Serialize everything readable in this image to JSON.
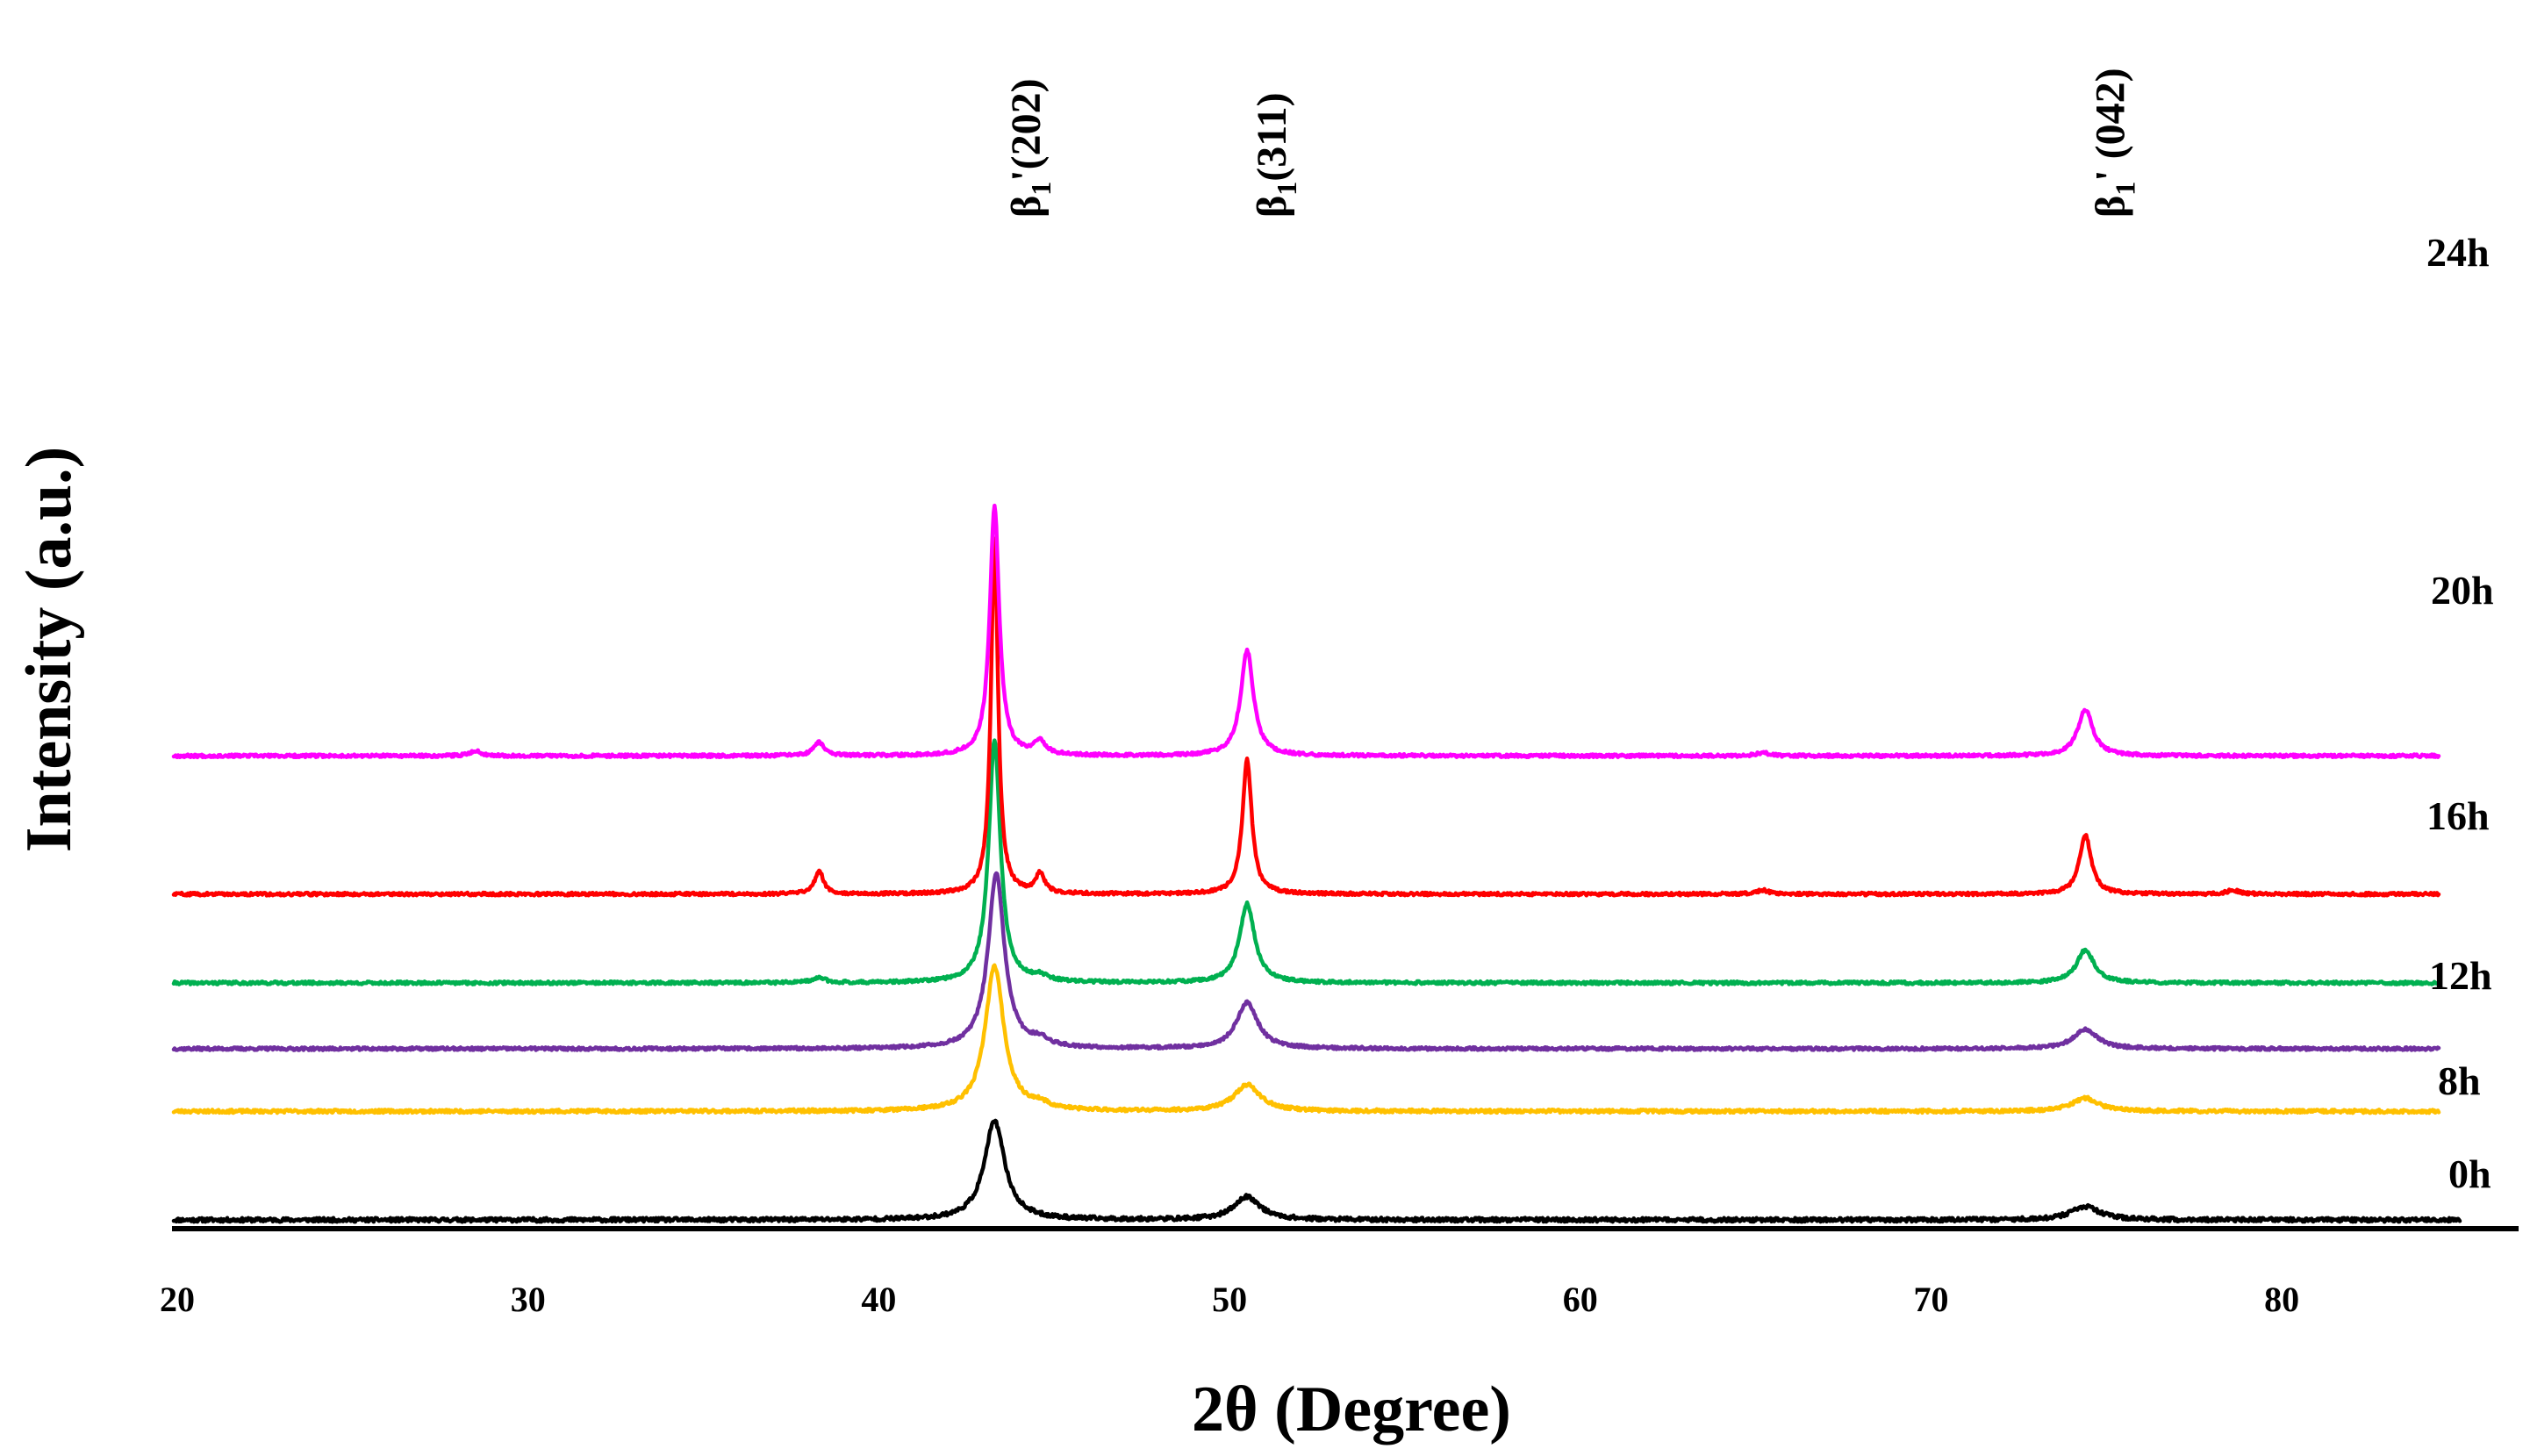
{
  "chart_data": {
    "type": "line",
    "title": "",
    "xlabel": "2θ (Degree)",
    "ylabel": "Intensity (a.u.)",
    "xlim": [
      20,
      85
    ],
    "x_ticks": [
      20,
      30,
      40,
      50,
      60,
      70,
      80
    ],
    "grid": false,
    "legend": "inline-right",
    "series": [
      {
        "name": "0h",
        "color": "#000000",
        "baseline": 0,
        "noise": 0.6,
        "seed": 11,
        "peaks": [
          {
            "x": 43.3,
            "h": 30,
            "w": 0.35
          },
          {
            "x": 50.5,
            "h": 7,
            "w": 0.45
          },
          {
            "x": 74.4,
            "h": 4,
            "w": 0.5
          }
        ]
      },
      {
        "name": "8h",
        "color": "#FFC000",
        "baseline": 33,
        "noise": 0.5,
        "seed": 23,
        "peaks": [
          {
            "x": 43.3,
            "h": 44,
            "w": 0.32
          },
          {
            "x": 44.6,
            "h": 1.5,
            "w": 0.3
          },
          {
            "x": 50.5,
            "h": 8,
            "w": 0.45
          },
          {
            "x": 74.4,
            "h": 4,
            "w": 0.45
          }
        ]
      },
      {
        "name": "12h",
        "color": "#7030A0",
        "baseline": 52,
        "noise": 0.45,
        "seed": 37,
        "peaks": [
          {
            "x": 43.35,
            "h": 53,
            "w": 0.28
          },
          {
            "x": 44.6,
            "h": 2,
            "w": 0.3
          },
          {
            "x": 50.5,
            "h": 14,
            "w": 0.36
          },
          {
            "x": 74.4,
            "h": 6,
            "w": 0.4
          }
        ]
      },
      {
        "name": "16h",
        "color": "#00B050",
        "baseline": 72,
        "noise": 0.45,
        "seed": 41,
        "peaks": [
          {
            "x": 38.3,
            "h": 1.5,
            "w": 0.22
          },
          {
            "x": 43.3,
            "h": 74,
            "w": 0.2
          },
          {
            "x": 44.6,
            "h": 1.5,
            "w": 0.25
          },
          {
            "x": 50.5,
            "h": 24,
            "w": 0.26
          },
          {
            "x": 74.4,
            "h": 10,
            "w": 0.3
          }
        ]
      },
      {
        "name": "20h",
        "color": "#FF0000",
        "baseline": 99,
        "noise": 0.45,
        "seed": 59,
        "peaks": [
          {
            "x": 38.3,
            "h": 7,
            "w": 0.15
          },
          {
            "x": 43.3,
            "h": 108,
            "w": 0.12
          },
          {
            "x": 44.6,
            "h": 6,
            "w": 0.15
          },
          {
            "x": 50.5,
            "h": 41,
            "w": 0.16
          },
          {
            "x": 65.2,
            "h": 1.2,
            "w": 0.2
          },
          {
            "x": 74.4,
            "h": 18,
            "w": 0.2
          },
          {
            "x": 78.6,
            "h": 1.2,
            "w": 0.2
          }
        ]
      },
      {
        "name": "24h",
        "color": "#FF00FF",
        "baseline": 141,
        "noise": 0.45,
        "seed": 67,
        "peaks": [
          {
            "x": 28.5,
            "h": 1.5,
            "w": 0.2
          },
          {
            "x": 38.3,
            "h": 4,
            "w": 0.18
          },
          {
            "x": 43.3,
            "h": 76,
            "w": 0.16
          },
          {
            "x": 44.6,
            "h": 4,
            "w": 0.2
          },
          {
            "x": 50.5,
            "h": 32,
            "w": 0.22
          },
          {
            "x": 65.2,
            "h": 1,
            "w": 0.2
          },
          {
            "x": 74.4,
            "h": 14,
            "w": 0.26
          }
        ]
      }
    ],
    "annotations": [
      {
        "symbol": "β",
        "sub": "1",
        "suffix": "'(202)",
        "x": 44.6
      },
      {
        "symbol": "β",
        "sub": "1",
        "suffix": "(311)",
        "x": 51.6
      },
      {
        "symbol": "β",
        "sub": "1",
        "suffix": "' (042)",
        "x": 75.5
      }
    ]
  }
}
